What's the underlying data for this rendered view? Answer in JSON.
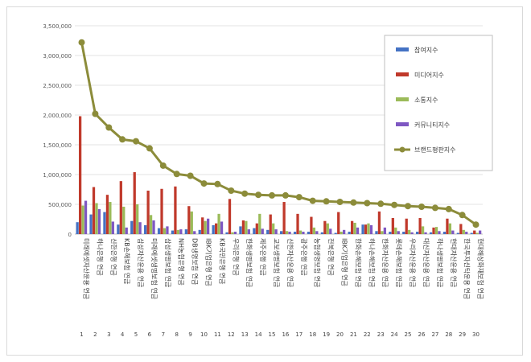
{
  "chart_data": {
    "type": "bar",
    "categories": [
      "1",
      "2",
      "3",
      "4",
      "5",
      "6",
      "7",
      "8",
      "9",
      "10",
      "11",
      "12",
      "13",
      "14",
      "15",
      "16",
      "17",
      "18",
      "19",
      "20",
      "21",
      "22",
      "23",
      "24",
      "25",
      "26",
      "27",
      "28",
      "29",
      "30"
    ],
    "company_labels": [
      "미래에셋자산운용 연금",
      "하나은행 연금",
      "신한은행 연금",
      "KB손해보험 연금",
      "삼성자산운용 연금",
      "미래에셋생명보험 연금",
      "삼성생명보험 연금",
      "NH농협은행 연금",
      "DB생명보험 연금",
      "IBK기업은행 연금",
      "KB국민은행 연금",
      "우리은행 연금",
      "한화생명보험 연금",
      "제주은행 연금",
      "교보생명보험 연금",
      "신한자산운용 연금",
      "광주은행 연금",
      "농협생명보험 연금",
      "전북은행 연금",
      "IBK기업은행 연금",
      "한화손해보험 연금",
      "하나손해보험 연금",
      "한화자산운용 연금",
      "롯데손해보험 연금",
      "우리자산운용 연금",
      "대신자산운용 연금",
      "하나생명보험 연금",
      "현대자산운용 연금",
      "한국투자신탁운용 연금",
      "현대해상화재보험 연금"
    ],
    "series": [
      {
        "name": "참여지수",
        "color": "#4472c4",
        "values": [
          200000,
          330000,
          370000,
          160000,
          220000,
          150000,
          100000,
          60000,
          80000,
          70000,
          150000,
          30000,
          130000,
          100000,
          70000,
          50000,
          40000,
          40000,
          30000,
          20000,
          40000,
          160000,
          50000,
          40000,
          40000,
          40000,
          30000,
          40000,
          20000,
          20000
        ]
      },
      {
        "name": "미디어지수",
        "color": "#c0392b",
        "values": [
          1980000,
          790000,
          660000,
          890000,
          1040000,
          730000,
          760000,
          800000,
          470000,
          280000,
          180000,
          590000,
          230000,
          180000,
          330000,
          540000,
          340000,
          290000,
          220000,
          370000,
          220000,
          160000,
          380000,
          270000,
          260000,
          270000,
          110000,
          260000,
          170000,
          60000
        ]
      },
      {
        "name": "소통지수",
        "color": "#9bbb59",
        "values": [
          480000,
          520000,
          540000,
          460000,
          500000,
          320000,
          100000,
          70000,
          380000,
          220000,
          340000,
          30000,
          220000,
          340000,
          180000,
          50000,
          60000,
          110000,
          180000,
          40000,
          190000,
          180000,
          50000,
          110000,
          70000,
          130000,
          120000,
          180000,
          70000,
          20000
        ]
      },
      {
        "name": "커뮤니티지수",
        "color": "#7e57c2",
        "values": [
          560000,
          420000,
          210000,
          110000,
          200000,
          230000,
          130000,
          80000,
          50000,
          260000,
          210000,
          40000,
          80000,
          90000,
          80000,
          40000,
          40000,
          50000,
          90000,
          70000,
          110000,
          150000,
          110000,
          50000,
          30000,
          30000,
          50000,
          60000,
          40000,
          60000
        ]
      }
    ],
    "line_series": {
      "name": "브랜드평판지수",
      "color": "#8c8c3a",
      "values": [
        3220000,
        2020000,
        1790000,
        1590000,
        1560000,
        1440000,
        1150000,
        1010000,
        980000,
        850000,
        840000,
        730000,
        680000,
        660000,
        650000,
        650000,
        620000,
        560000,
        550000,
        540000,
        530000,
        520000,
        510000,
        490000,
        470000,
        460000,
        440000,
        420000,
        320000,
        160000
      ]
    },
    "ylim": [
      0,
      3500000
    ],
    "yticks": [
      "0",
      "500,000",
      "1,000,000",
      "1,500,000",
      "2,000,000",
      "2,500,000",
      "3,000,000",
      "3,500,000"
    ],
    "ytick_values": [
      0,
      500000,
      1000000,
      1500000,
      2000000,
      2500000,
      3000000,
      3500000
    ],
    "grid": true,
    "legend_position": "right"
  }
}
